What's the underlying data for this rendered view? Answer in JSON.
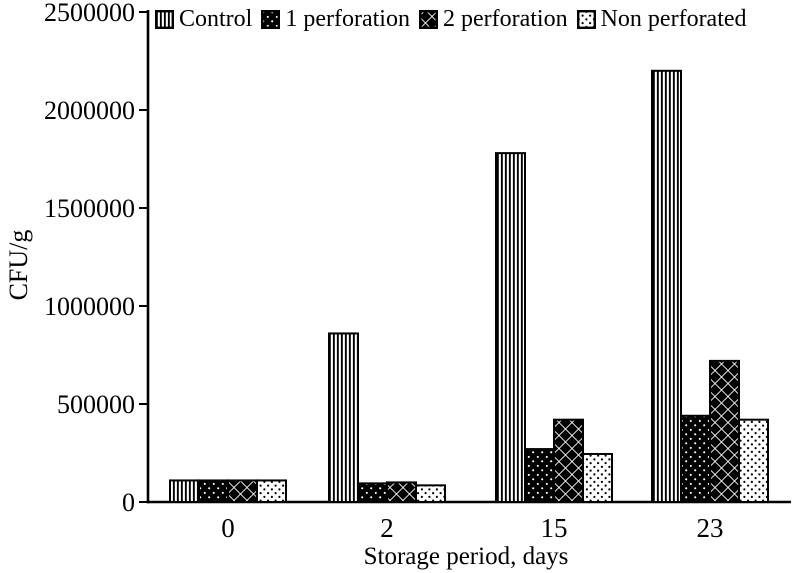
{
  "chart_data": {
    "type": "bar",
    "title": "",
    "xlabel": "Storage  period, days",
    "ylabel": "CFU/g",
    "categories": [
      "0",
      "2",
      "15",
      "23"
    ],
    "series": [
      {
        "name": "Control",
        "pattern": "vertical-stripes",
        "values": [
          110000,
          860000,
          1780000,
          2200000
        ]
      },
      {
        "name": "1 perforation",
        "pattern": "black-dots",
        "values": [
          110000,
          95000,
          270000,
          440000
        ]
      },
      {
        "name": "2 perforation",
        "pattern": "diamond-check",
        "values": [
          110000,
          100000,
          420000,
          720000
        ]
      },
      {
        "name": "Non perforated",
        "pattern": "white-dots",
        "values": [
          110000,
          85000,
          245000,
          420000
        ]
      }
    ],
    "ylim": [
      0,
      2500000
    ],
    "yticks": [
      {
        "value": 0,
        "label": "0"
      },
      {
        "value": 500000,
        "label": "500000"
      },
      {
        "value": 1000000,
        "label": "1000000"
      },
      {
        "value": 1500000,
        "label": "1500000"
      },
      {
        "value": 2000000,
        "label": "2000000"
      },
      {
        "value": 2500000,
        "label": "2500000"
      }
    ],
    "legend_position": "top",
    "grid": false,
    "colors": {
      "ink": "#000000",
      "background": "#ffffff"
    }
  }
}
